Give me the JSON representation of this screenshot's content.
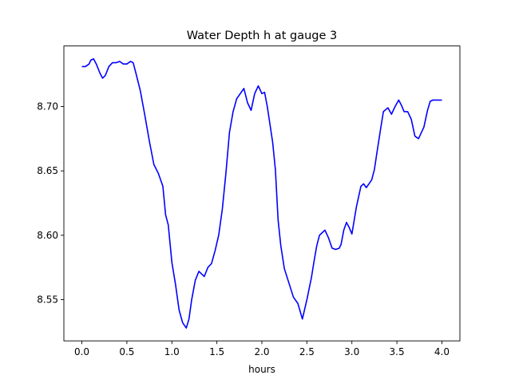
{
  "chart_data": {
    "type": "line",
    "title": "Water Depth h at gauge 3",
    "xlabel": "hours",
    "ylabel": "",
    "xlim": [
      -0.2,
      4.2
    ],
    "ylim": [
      8.518,
      8.747
    ],
    "xticks": [
      0.0,
      0.5,
      1.0,
      1.5,
      2.0,
      2.5,
      3.0,
      3.5,
      4.0
    ],
    "xtick_labels": [
      "0.0",
      "0.5",
      "1.0",
      "1.5",
      "2.0",
      "2.5",
      "3.0",
      "3.5",
      "4.0"
    ],
    "yticks": [
      8.55,
      8.6,
      8.65,
      8.7
    ],
    "ytick_labels": [
      "8.55",
      "8.60",
      "8.65",
      "8.70"
    ],
    "grid": false,
    "series": [
      {
        "color": "#0000ff",
        "x": [
          0.0,
          0.04,
          0.08,
          0.1,
          0.13,
          0.16,
          0.2,
          0.23,
          0.26,
          0.3,
          0.34,
          0.38,
          0.42,
          0.46,
          0.5,
          0.54,
          0.57,
          0.6,
          0.65,
          0.7,
          0.75,
          0.8,
          0.85,
          0.9,
          0.93,
          0.96,
          1.0,
          1.04,
          1.08,
          1.12,
          1.16,
          1.19,
          1.22,
          1.26,
          1.3,
          1.33,
          1.36,
          1.4,
          1.44,
          1.48,
          1.52,
          1.56,
          1.6,
          1.64,
          1.68,
          1.72,
          1.76,
          1.8,
          1.84,
          1.88,
          1.92,
          1.96,
          2.0,
          2.03,
          2.06,
          2.09,
          2.12,
          2.15,
          2.18,
          2.21,
          2.25,
          2.3,
          2.35,
          2.4,
          2.45,
          2.5,
          2.55,
          2.58,
          2.61,
          2.64,
          2.67,
          2.7,
          2.74,
          2.78,
          2.82,
          2.86,
          2.88,
          2.91,
          2.94,
          2.97,
          3.0,
          3.05,
          3.1,
          3.13,
          3.16,
          3.19,
          3.22,
          3.25,
          3.28,
          3.32,
          3.35,
          3.4,
          3.44,
          3.48,
          3.52,
          3.55,
          3.58,
          3.62,
          3.66,
          3.7,
          3.74,
          3.8,
          3.84,
          3.87,
          3.9,
          3.94,
          3.98,
          4.0
        ],
        "y": [
          8.731,
          8.731,
          8.733,
          8.736,
          8.737,
          8.733,
          8.726,
          8.722,
          8.724,
          8.731,
          8.734,
          8.734,
          8.735,
          8.733,
          8.733,
          8.735,
          8.734,
          8.726,
          8.712,
          8.693,
          8.673,
          8.655,
          8.648,
          8.638,
          8.616,
          8.608,
          8.579,
          8.562,
          8.542,
          8.532,
          8.528,
          8.535,
          8.55,
          8.565,
          8.572,
          8.57,
          8.568,
          8.575,
          8.578,
          8.588,
          8.6,
          8.62,
          8.648,
          8.68,
          8.696,
          8.706,
          8.71,
          8.714,
          8.703,
          8.697,
          8.71,
          8.716,
          8.71,
          8.711,
          8.7,
          8.686,
          8.672,
          8.651,
          8.612,
          8.592,
          8.574,
          8.563,
          8.552,
          8.547,
          8.535,
          8.55,
          8.567,
          8.58,
          8.592,
          8.6,
          8.602,
          8.604,
          8.598,
          8.59,
          8.589,
          8.59,
          8.593,
          8.604,
          8.61,
          8.606,
          8.601,
          8.622,
          8.638,
          8.64,
          8.637,
          8.64,
          8.643,
          8.651,
          8.665,
          8.683,
          8.696,
          8.699,
          8.694,
          8.7,
          8.705,
          8.701,
          8.696,
          8.696,
          8.69,
          8.677,
          8.675,
          8.684,
          8.697,
          8.704,
          8.705,
          8.705,
          8.705,
          8.705
        ]
      }
    ]
  }
}
